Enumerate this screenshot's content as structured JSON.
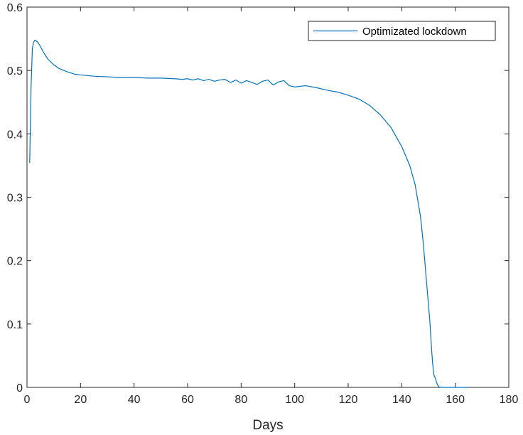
{
  "chart_data": {
    "type": "line",
    "title": "",
    "xlabel": "Days",
    "ylabel": "",
    "xlim": [
      0,
      180
    ],
    "ylim": [
      0,
      0.6
    ],
    "xticks": [
      0,
      20,
      40,
      60,
      80,
      100,
      120,
      140,
      160,
      180
    ],
    "yticks": [
      0,
      0.1,
      0.2,
      0.3,
      0.4,
      0.5,
      0.6
    ],
    "xtick_labels": [
      "0",
      "20",
      "40",
      "60",
      "80",
      "100",
      "120",
      "140",
      "160",
      "180"
    ],
    "ytick_labels": [
      "0",
      "0.1",
      "0.2",
      "0.3",
      "0.4",
      "0.5",
      "0.6"
    ],
    "grid": false,
    "legend_position": "top-right",
    "colors": {
      "series": "#0072BD",
      "axis": "#262626"
    },
    "series": [
      {
        "name": "Optimizated lockdown",
        "x": [
          1,
          1.5,
          2,
          2.5,
          3,
          4,
          5,
          6,
          7,
          8,
          10,
          12,
          15,
          18,
          20,
          25,
          30,
          35,
          40,
          45,
          50,
          55,
          58,
          60,
          62,
          64,
          66,
          68,
          70,
          72,
          74,
          76,
          78,
          80,
          82,
          84,
          86,
          88,
          90,
          92,
          94,
          96,
          98,
          100,
          104,
          108,
          112,
          116,
          120,
          124,
          128,
          132,
          136,
          140,
          143,
          145,
          147,
          148,
          149,
          150,
          150.5,
          151,
          151.5,
          152,
          152.5,
          153,
          153.5,
          154,
          155,
          156,
          158,
          160,
          162,
          164,
          165
        ],
        "y": [
          0.354,
          0.47,
          0.535,
          0.545,
          0.548,
          0.545,
          0.538,
          0.53,
          0.523,
          0.517,
          0.509,
          0.503,
          0.498,
          0.494,
          0.493,
          0.491,
          0.49,
          0.489,
          0.489,
          0.488,
          0.488,
          0.487,
          0.486,
          0.487,
          0.485,
          0.487,
          0.484,
          0.486,
          0.483,
          0.485,
          0.486,
          0.481,
          0.485,
          0.48,
          0.484,
          0.481,
          0.478,
          0.483,
          0.485,
          0.477,
          0.482,
          0.484,
          0.476,
          0.474,
          0.476,
          0.473,
          0.469,
          0.466,
          0.461,
          0.455,
          0.445,
          0.43,
          0.41,
          0.38,
          0.35,
          0.32,
          0.27,
          0.23,
          0.18,
          0.13,
          0.105,
          0.07,
          0.04,
          0.02,
          0.015,
          0.008,
          0.003,
          0.0005,
          0,
          0,
          0,
          0,
          0,
          0,
          0
        ]
      }
    ]
  }
}
